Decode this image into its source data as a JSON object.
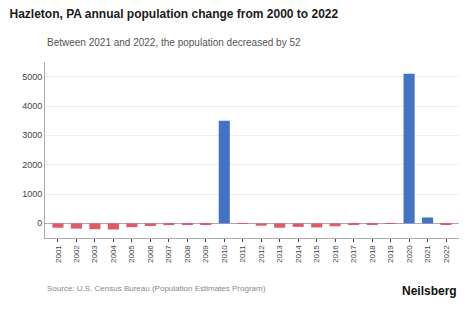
{
  "chart_data": {
    "type": "bar",
    "title": "Hazleton, PA annual population change from 2000 to 2022",
    "subtitle": "Between 2021 and 2022, the population decreased by 52",
    "annotations": [
      "Source: U.S. Census Bureau (Population Estimates Program)",
      "Neilsberg"
    ],
    "x": [
      2001,
      2002,
      2003,
      2004,
      2005,
      2006,
      2007,
      2008,
      2009,
      2010,
      2011,
      2012,
      2013,
      2014,
      2015,
      2016,
      2017,
      2018,
      2019,
      2020,
      2021,
      2022
    ],
    "values": [
      -150,
      -180,
      -200,
      -210,
      -130,
      -90,
      -60,
      -50,
      -30,
      3500,
      -20,
      -80,
      -150,
      -120,
      -140,
      -100,
      -50,
      -30,
      -20,
      5100,
      200,
      -52
    ],
    "colors": [
      "#E05A6A",
      "#E05A6A",
      "#E05A6A",
      "#E05A6A",
      "#E05A6A",
      "#E05A6A",
      "#E05A6A",
      "#E05A6A",
      "#E05A6A",
      "#4472C4",
      "#E05A6A",
      "#E05A6A",
      "#E05A6A",
      "#E05A6A",
      "#E05A6A",
      "#E05A6A",
      "#E05A6A",
      "#E05A6A",
      "#E05A6A",
      "#4472C4",
      "#4472C4",
      "#E05A6A"
    ],
    "xlim": [
      2000.3,
      2022.7
    ],
    "xticks": [
      2001,
      2002,
      2003,
      2004,
      2005,
      2006,
      2007,
      2008,
      2009,
      2010,
      2011,
      2012,
      2013,
      2014,
      2015,
      2016,
      2017,
      2018,
      2019,
      2020,
      2021,
      2022
    ],
    "ylim": [
      -500,
      5500
    ],
    "yticks": [
      0,
      1000,
      2000,
      3000,
      4000,
      5000
    ],
    "grid": true
  }
}
